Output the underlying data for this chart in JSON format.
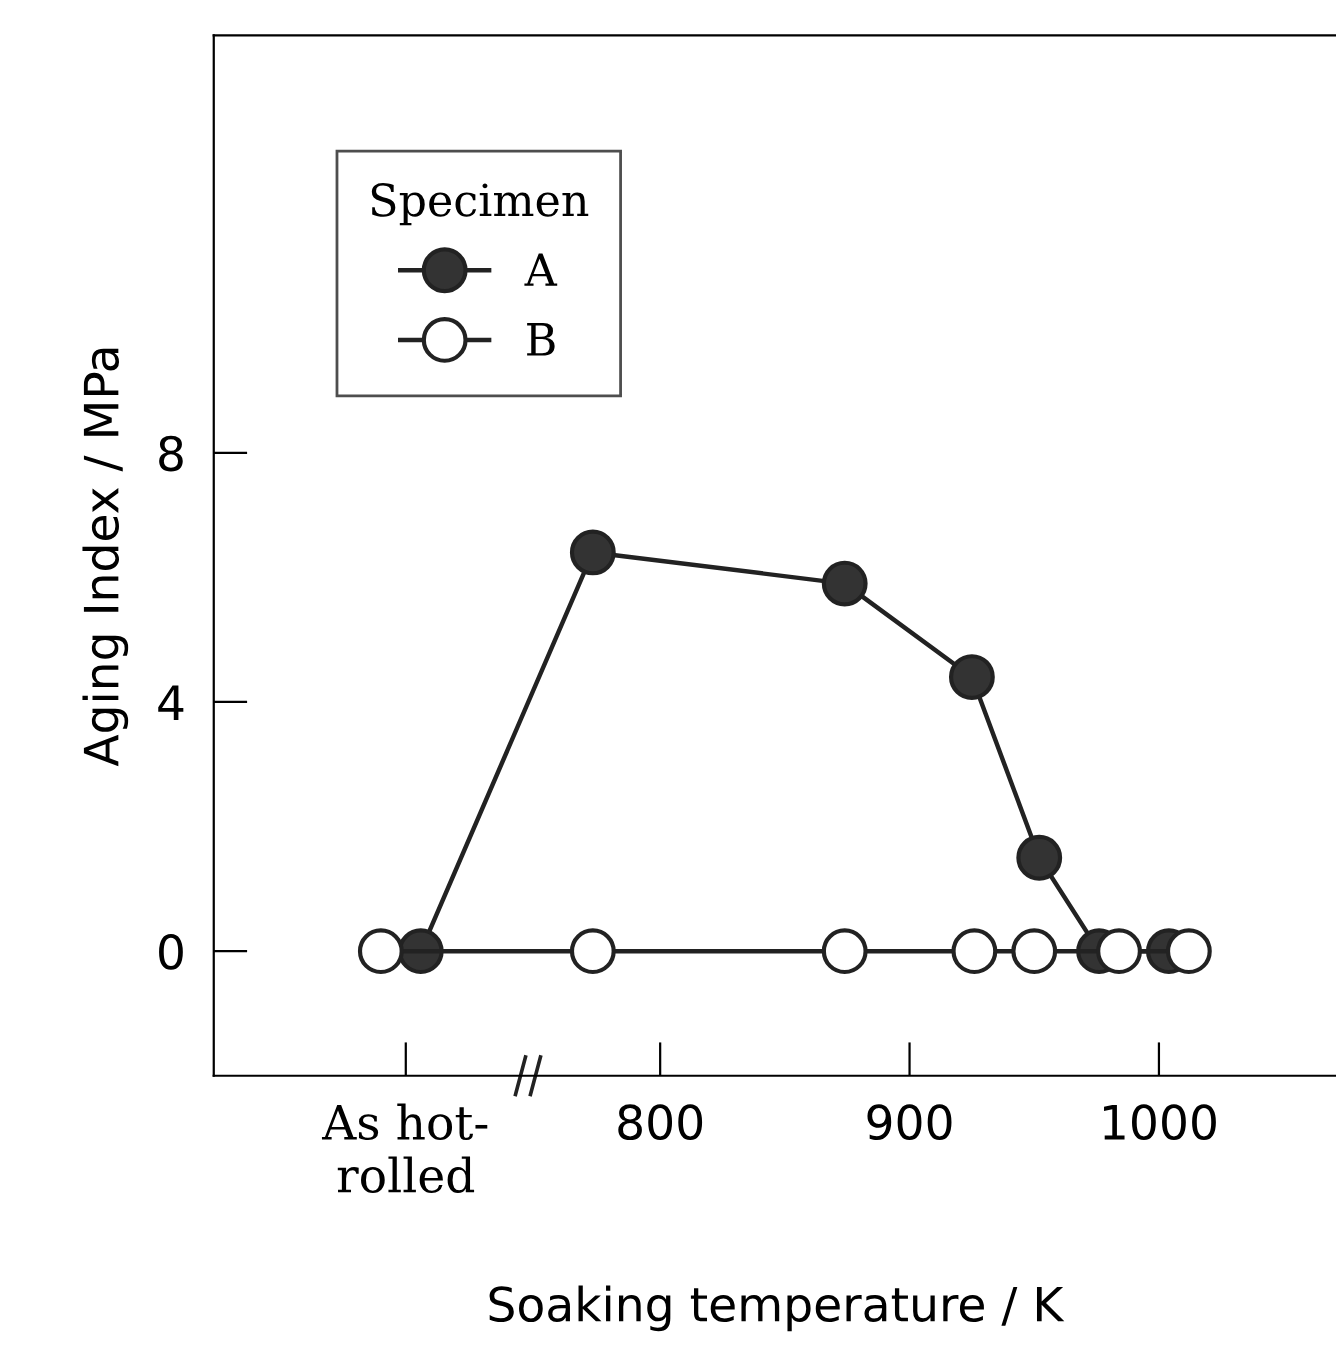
{
  "chart_data": {
    "type": "line",
    "xlabel": "Soaking temperature / K",
    "ylabel": "Aging Index / MPa",
    "legend_title": "Specimen",
    "series": [
      {
        "name": "A",
        "color": "#333333",
        "x": [
          704,
          773,
          874,
          925,
          952,
          976,
          1004
        ],
        "values": [
          0,
          6.4,
          5.9,
          4.4,
          1.5,
          0,
          0
        ]
      },
      {
        "name": "B",
        "color": "#ffffff",
        "x": [
          688,
          773,
          874,
          926,
          950,
          984,
          1012
        ],
        "values": [
          0,
          0,
          0,
          0,
          0,
          0,
          0
        ]
      }
    ],
    "xlim": [
      621,
      1071
    ],
    "ylim": [
      -2,
      14.7
    ],
    "xticks": [
      {
        "value": 698,
        "label": "As hot-\nrolled"
      },
      800,
      900,
      1000
    ],
    "yticks": [
      0,
      4,
      8
    ],
    "marker": "circle",
    "line_style": "solid",
    "grid": false,
    "legend": "top left"
  }
}
